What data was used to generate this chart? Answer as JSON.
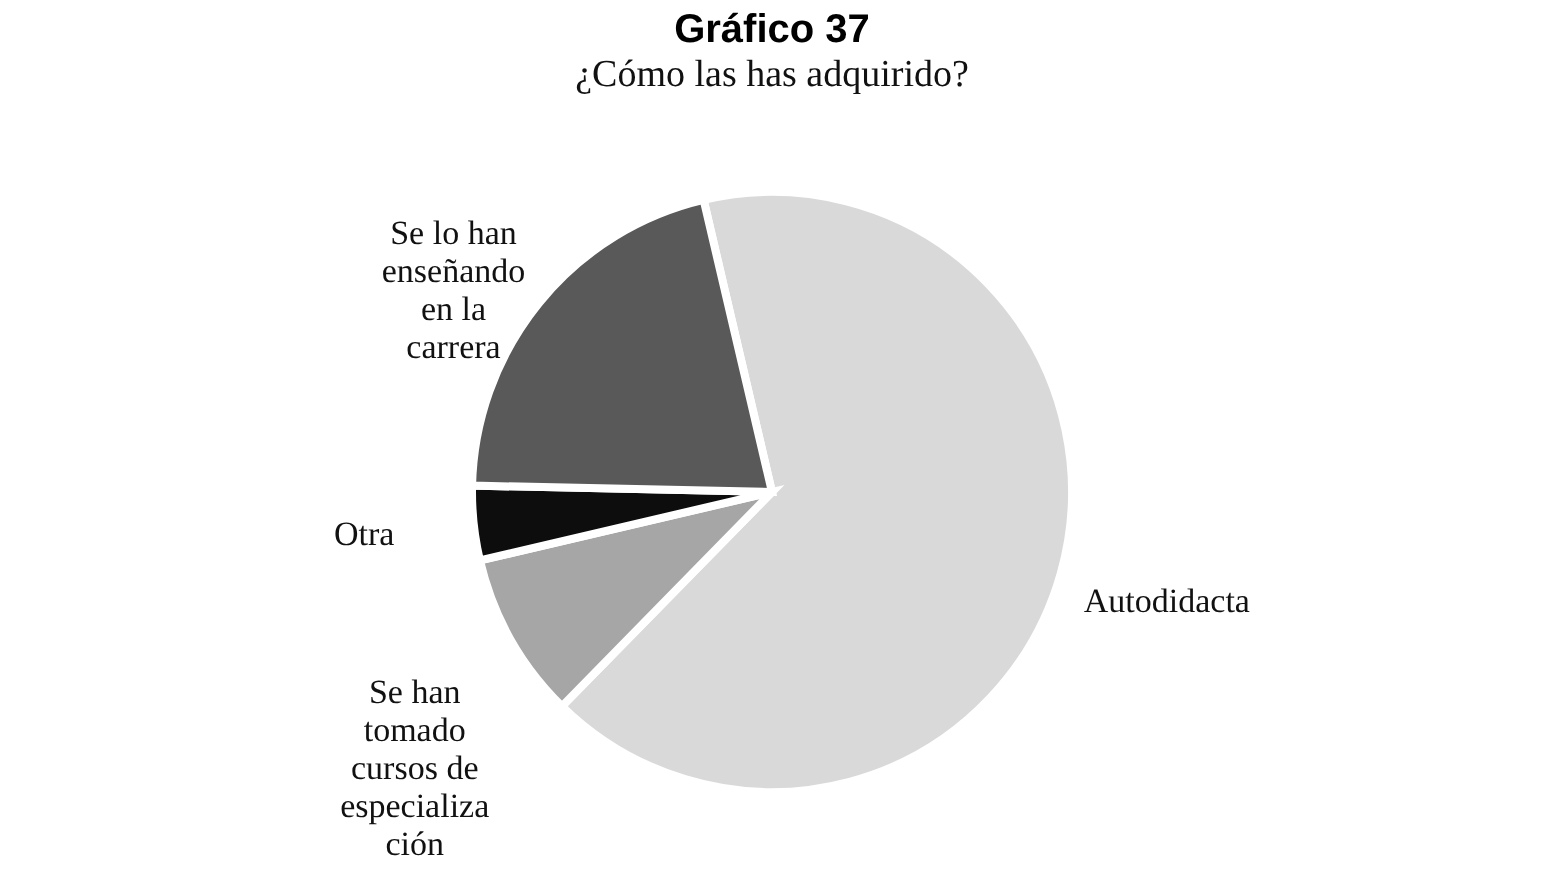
{
  "chart_data": {
    "type": "pie",
    "title": "Gráfico 37",
    "subtitle": "¿Cómo las has adquirido?",
    "categories": [
      "Autodidacta",
      "Se han tomado cursos de especialización",
      "Otra",
      "Se lo han enseñando en la carrera"
    ],
    "values": [
      66,
      9,
      4,
      21
    ],
    "colors": [
      "#d9d9d9",
      "#a6a6a6",
      "#0d0d0d",
      "#595959"
    ],
    "legend": false
  }
}
